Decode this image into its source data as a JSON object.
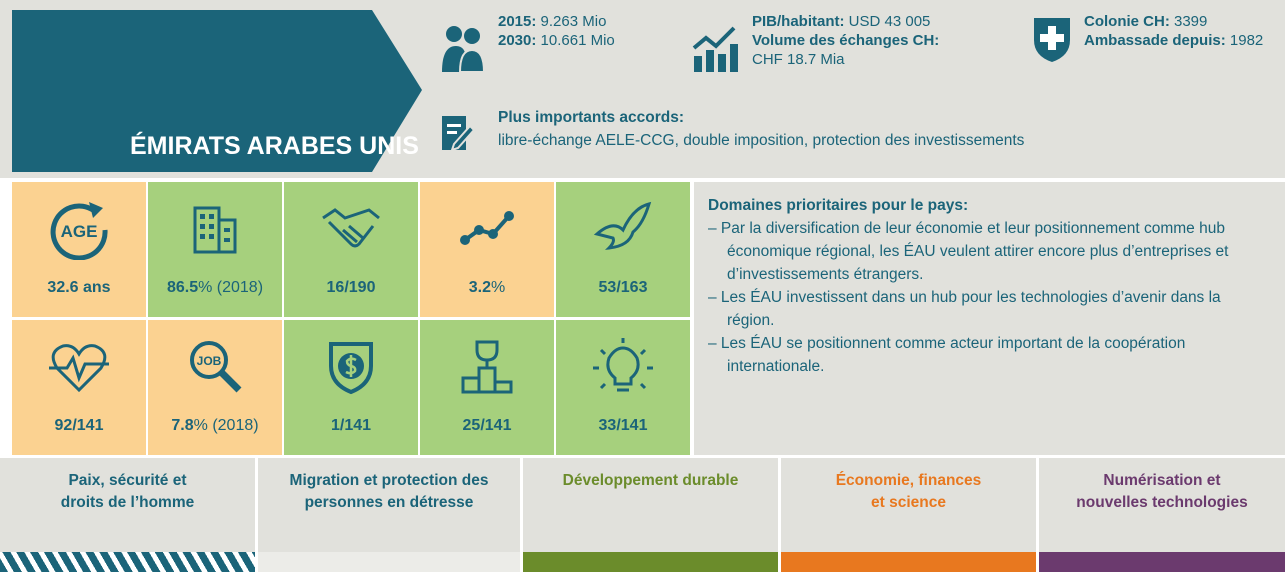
{
  "header": {
    "title": "ÉMIRATS ARABES UNIS",
    "population": [
      {
        "label": "2015:",
        "value": "9.263 Mio"
      },
      {
        "label": "2030:",
        "value": "10.661 Mio"
      }
    ],
    "economy": {
      "gdp_label": "PIB/habitant:",
      "gdp_value": "USD 43 005",
      "trade_label": "Volume des échanges CH:",
      "trade_value": "CHF 18.7 Mia"
    },
    "swiss": [
      {
        "label": "Colonie CH:",
        "value": "3399"
      },
      {
        "label": "Ambassade depuis:",
        "value": "1982"
      }
    ],
    "agreements": {
      "label": "Plus importants accords:",
      "text": "libre-échange AELE-CCG, double imposition, protection des investissements"
    }
  },
  "indicators": [
    {
      "bold": "32.6 ans",
      "rest": "",
      "icon_text": "AGE"
    },
    {
      "bold": "86.5",
      "rest": "% (2018)"
    },
    {
      "bold": "16/190",
      "rest": ""
    },
    {
      "bold": "3.2",
      "rest": "%"
    },
    {
      "bold": "53/163",
      "rest": ""
    },
    {
      "bold": "92/141",
      "rest": ""
    },
    {
      "bold": "7.8",
      "rest": "% (2018)",
      "icon_text": "JOB"
    },
    {
      "bold": "1/141",
      "rest": ""
    },
    {
      "bold": "25/141",
      "rest": ""
    },
    {
      "bold": "33/141",
      "rest": ""
    }
  ],
  "priorities": {
    "title": "Domaines prioritaires pour le pays:",
    "items": [
      "– Par la diversification de leur économie et leur positionnement comme hub économique régional, les ÉAU veulent attirer encore plus d’entreprises et d’investissements étrangers.",
      "– Les ÉAU investissent dans un hub pour les technologies d’avenir dans la région.",
      "– Les ÉAU se positionnent comme acteur important de la coopération internationale."
    ]
  },
  "domains": [
    {
      "lines": [
        "Paix, sécurité et",
        "droits de l’homme"
      ]
    },
    {
      "lines": [
        "Migration et protection des",
        "personnes en détresse"
      ]
    },
    {
      "lines": [
        "Développement durable"
      ]
    },
    {
      "lines": [
        "Économie, finances",
        "et science"
      ]
    },
    {
      "lines": [
        "Numérisation et",
        "nouvelles technologies"
      ]
    }
  ]
}
